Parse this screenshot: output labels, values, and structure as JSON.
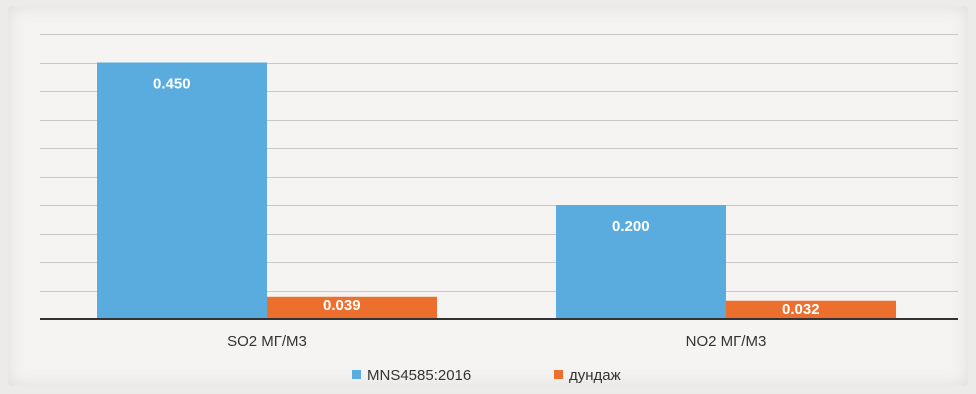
{
  "chart_data": {
    "type": "bar",
    "title": "",
    "xlabel": "",
    "ylabel": "",
    "categories": [
      "SO2 МГ/М3",
      "NO2 МГ/М3"
    ],
    "series": [
      {
        "name": "MNS4585:2016",
        "values": [
          0.45,
          0.2
        ],
        "labels": [
          "0.450",
          "0.200"
        ]
      },
      {
        "name": "дундаж",
        "values": [
          0.039,
          0.032
        ],
        "labels": [
          "0.039",
          "0.032"
        ]
      }
    ],
    "ylim": [
      0,
      0.5
    ],
    "grid": true,
    "legend": "bottom"
  },
  "colors": {
    "series": [
      "#5aacdf",
      "#ec6f2e"
    ],
    "grid": "#c8c8c8",
    "axis": "#333333"
  }
}
